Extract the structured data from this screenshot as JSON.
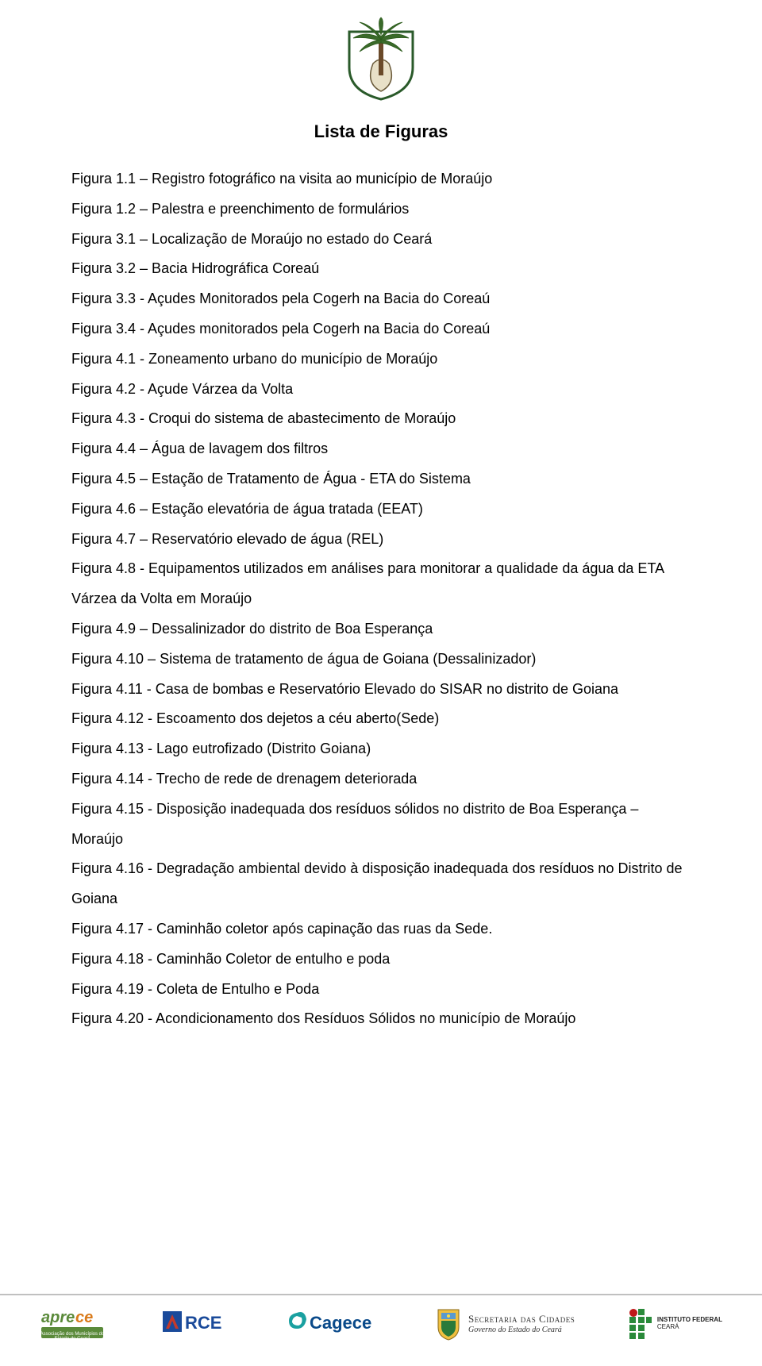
{
  "title": "Lista de Figuras",
  "entries": [
    "Figura 1.1 – Registro fotográfico na visita ao município de Moraújo",
    "Figura 1.2 – Palestra e preenchimento de formulários",
    "Figura 3.1 – Localização de Moraújo no estado do Ceará",
    "Figura 3.2 – Bacia Hidrográfica Coreaú",
    "Figura 3.3 - Açudes Monitorados pela Cogerh na Bacia do Coreaú",
    "Figura 3.4 - Açudes monitorados pela Cogerh na Bacia do Coreaú",
    "Figura 4.1 - Zoneamento urbano do município de Moraújo",
    "Figura 4.2 - Açude Várzea da Volta",
    "Figura 4.3 - Croqui do sistema de abastecimento de Moraújo",
    "Figura 4.4 – Água de lavagem dos filtros",
    "Figura 4.5 – Estação de Tratamento de Água - ETA do Sistema",
    "Figura 4.6 – Estação elevatória de água tratada (EEAT)",
    "Figura 4.7 – Reservatório elevado de água (REL)",
    "Figura 4.8 - Equipamentos utilizados em análises para monitorar a qualidade da água da ETA Várzea da Volta em Moraújo",
    "Figura 4.9 – Dessalinizador do distrito de Boa Esperança",
    "Figura 4.10 – Sistema de tratamento de água de Goiana (Dessalinizador)",
    "Figura 4.11 - Casa de bombas e Reservatório Elevado do SISAR no distrito de Goiana",
    "Figura 4.12 - Escoamento dos dejetos a céu aberto(Sede)",
    "Figura 4.13 - Lago eutrofizado (Distrito Goiana)",
    "Figura 4.14 - Trecho de rede de drenagem deteriorada",
    "Figura 4.15 - Disposição inadequada dos resíduos sólidos no distrito de Boa Esperança – Moraújo",
    "Figura 4.16 - Degradação ambiental devido à disposição inadequada dos resíduos no Distrito de Goiana",
    "Figura 4.17 - Caminhão coletor após capinação das ruas da Sede.",
    "Figura 4.18 - Caminhão Coletor de entulho e poda",
    "Figura 4.19 - Coleta de Entulho e Poda",
    "Figura 4.20 - Acondicionamento dos Resíduos Sólidos no município de Moraújo"
  ],
  "footer": {
    "aprece": "aprece",
    "arce": "ARCE",
    "cagece": "Cagece",
    "secretaria_l1": "Secretaria das Cidades",
    "secretaria_l2": "Governo do Estado do Ceará",
    "if_l1": "INSTITUTO FEDERAL",
    "if_l2": "CEARÁ"
  },
  "colors": {
    "text": "#000000",
    "bg": "#ffffff",
    "hr": "#c0c0c0",
    "aprece_green": "#5a8a3a",
    "aprece_orange": "#d97a1a",
    "arce_blue": "#1a4a9a",
    "arce_red": "#c43a2a",
    "cagece_blue": "#0a4a8a",
    "cagece_teal": "#1aa0a0",
    "shield_yellow": "#f0c040",
    "shield_green": "#2a7a3a",
    "if_green": "#2a8a3a",
    "if_red": "#c01818",
    "palm_green": "#3a6a2a",
    "palm_trunk": "#6a4a2a"
  }
}
